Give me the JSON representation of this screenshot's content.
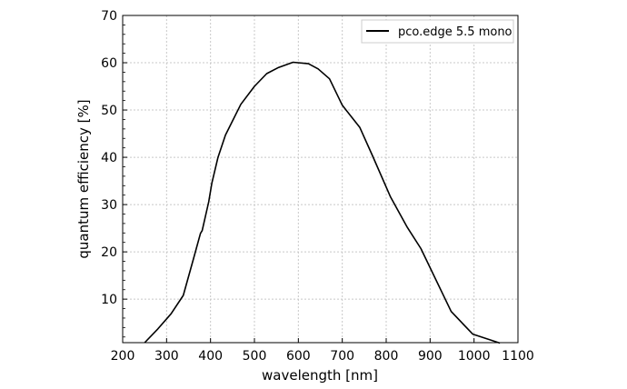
{
  "chart_data": {
    "type": "line",
    "title": "",
    "xlabel": "wavelength [nm]",
    "ylabel": "quantum efficiency [%]",
    "xlim": [
      200,
      1100
    ],
    "ylim": [
      0.8,
      70
    ],
    "xticks": [
      200,
      300,
      400,
      500,
      600,
      700,
      800,
      900,
      1000,
      1100
    ],
    "yticks": [
      10,
      20,
      30,
      40,
      50,
      60,
      70
    ],
    "grid": true,
    "legend_position": "top-right",
    "series": [
      {
        "name": "pco.edge 5.5 mono",
        "color": "#000000",
        "x": [
          250,
          280,
          310,
          338,
          362,
          377,
          381,
          396,
          403,
          417,
          434,
          469,
          500,
          528,
          555,
          588,
          623,
          645,
          671,
          700,
          740,
          769,
          810,
          848,
          879,
          948,
          997,
          1059
        ],
        "y": [
          0.8,
          3.7,
          6.9,
          10.8,
          18.8,
          23.9,
          24.5,
          30.6,
          34.5,
          40.0,
          44.7,
          51.2,
          55.0,
          57.7,
          59.0,
          60.1,
          59.8,
          58.7,
          56.6,
          51.0,
          46.3,
          40.3,
          31.6,
          25.2,
          20.7,
          7.4,
          2.6,
          0.7
        ]
      }
    ]
  }
}
